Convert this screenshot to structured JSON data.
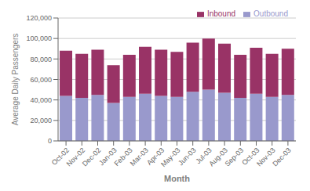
{
  "chart_data": {
    "type": "bar",
    "stacked": true,
    "xlabel": "Month",
    "ylabel": "Average Daily Passengers",
    "categories": [
      "Oct-02",
      "Nov-02",
      "Dec-02",
      "Jan-03",
      "Feb-03",
      "Mar-03",
      "Apr-03",
      "May-03",
      "Jun-03",
      "Jul-03",
      "Aug-03",
      "Sep-03",
      "Oct-03",
      "Nov-03",
      "Dec-03"
    ],
    "series": [
      {
        "name": "Outbound",
        "color": "#9999CC",
        "values": [
          44000,
          42000,
          45000,
          37000,
          43000,
          46000,
          44000,
          43000,
          48000,
          50000,
          47000,
          42000,
          46000,
          43000,
          45000
        ]
      },
      {
        "name": "Inbound",
        "color": "#993366",
        "values": [
          44000,
          43000,
          44000,
          37000,
          41000,
          46000,
          45000,
          44000,
          48000,
          50000,
          48000,
          42000,
          45000,
          42000,
          45000
        ]
      }
    ],
    "ylim": [
      0,
      120000
    ],
    "yticks": [
      0,
      {
        "value": 20000,
        "label": "20,000"
      },
      {
        "value": 40000,
        "label": "40,000"
      },
      {
        "value": 60000,
        "label": "60,000"
      },
      {
        "value": 80000,
        "label": "80,000"
      },
      {
        "value": 100000,
        "label": "100,000"
      },
      {
        "value": 120000,
        "label": "120,000"
      }
    ],
    "grid": true,
    "legend": "top right"
  }
}
